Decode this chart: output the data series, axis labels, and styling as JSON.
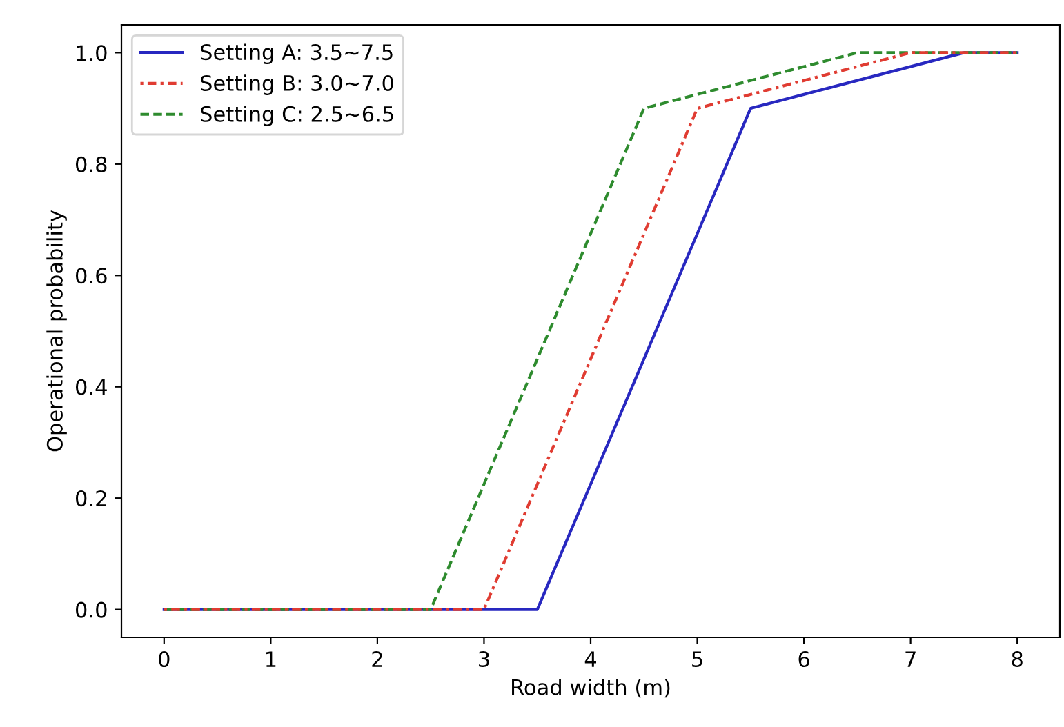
{
  "chart_data": {
    "type": "line",
    "xlabel": "Road width (m)",
    "ylabel": "Operational probability",
    "xlim": [
      -0.4,
      8.4
    ],
    "ylim": [
      -0.05,
      1.05
    ],
    "xticks": [
      0,
      1,
      2,
      3,
      4,
      5,
      6,
      7,
      8
    ],
    "yticks": [
      {
        "value": 0,
        "label": "0.0"
      },
      {
        "value": 0.2,
        "label": "0.2"
      },
      {
        "value": 0.4,
        "label": "0.4"
      },
      {
        "value": 0.6,
        "label": "0.6"
      },
      {
        "value": 0.8,
        "label": "0.8"
      },
      {
        "value": 1,
        "label": "1.0"
      }
    ],
    "grid": false,
    "legend": "top left",
    "series": [
      {
        "name": "Setting A: 3.5~7.5",
        "color": "#2828c0",
        "line_style": "solid",
        "x": [
          0,
          3.5,
          5.5,
          7.5,
          8
        ],
        "values": [
          0,
          0,
          0.9,
          1,
          1
        ]
      },
      {
        "name": "Setting B: 3.0~7.0",
        "color": "#e03c32",
        "line_style": "dashdot",
        "x": [
          0,
          3.0,
          5.0,
          7.0,
          8
        ],
        "values": [
          0,
          0,
          0.9,
          1,
          1
        ]
      },
      {
        "name": "Setting C: 2.5~6.5",
        "color": "#2e8b2e",
        "line_style": "dashed",
        "x": [
          0,
          2.5,
          4.5,
          6.5,
          8
        ],
        "values": [
          0,
          0,
          0.9,
          1,
          1
        ]
      }
    ]
  }
}
